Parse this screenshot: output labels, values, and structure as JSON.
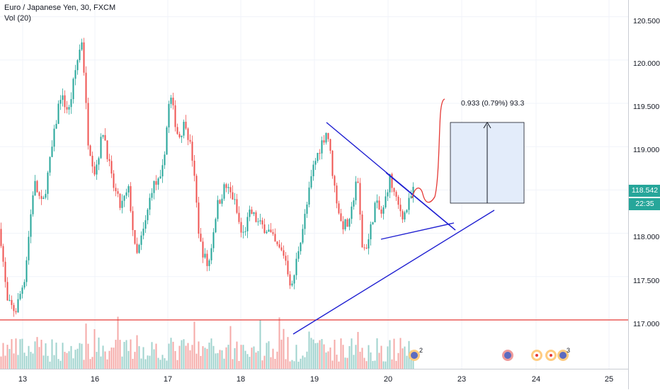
{
  "legend": {
    "symbol": "Euro / Japanese Yen, 30, FXCM",
    "indicator": "Vol (20)"
  },
  "price_axis": {
    "ticks": [
      "120.500",
      "120.000",
      "119.500",
      "119.000",
      "118.500",
      "118.000",
      "117.500",
      "117.000"
    ],
    "current_price": "118.542",
    "countdown": "22:35"
  },
  "time_axis": {
    "ticks": [
      "13",
      "16",
      "17",
      "18",
      "19",
      "20",
      "23",
      "24",
      "25"
    ]
  },
  "measure": {
    "label": "0.933 (0.79%) 93.3"
  },
  "events": [
    {
      "icon": "economic-event-icon",
      "count": "2"
    },
    {
      "icon": "economic-event-icon",
      "count": ""
    },
    {
      "icon": "earnings-event-icon",
      "count": ""
    },
    {
      "icon": "earnings-event-icon",
      "count": ""
    },
    {
      "icon": "economic-event-icon",
      "count": "3"
    }
  ],
  "colors": {
    "up": "#26a69a",
    "down": "#ef5350",
    "trendline": "#1f1fd1",
    "support": "#e53935",
    "measure_fill": "#e3ecfa",
    "vol_up": "#9fd3ce",
    "vol_down": "#f5a9a7"
  },
  "chart_data": {
    "type": "candlestick",
    "x_ticks": [
      "13",
      "16",
      "17",
      "18",
      "19",
      "20",
      "23",
      "24",
      "25"
    ],
    "y_ticks": [
      "120.500",
      "120.000",
      "119.500",
      "119.000",
      "118.500",
      "118.000",
      "117.500",
      "117.000"
    ],
    "y_range": [
      116.5,
      120.6
    ],
    "last_close": 118.542,
    "support_level": 117.06,
    "path": [
      [
        0,
        118.05
      ],
      [
        10,
        117.2
      ],
      [
        22,
        117.1
      ],
      [
        35,
        117.5
      ],
      [
        48,
        118.6
      ],
      [
        60,
        118.3
      ],
      [
        72,
        118.9
      ],
      [
        85,
        119.6
      ],
      [
        97,
        119.4
      ],
      [
        108,
        119.95
      ],
      [
        116,
        120.25
      ],
      [
        124,
        119.1
      ],
      [
        134,
        118.7
      ],
      [
        146,
        119.2
      ],
      [
        158,
        118.6
      ],
      [
        170,
        118.3
      ],
      [
        182,
        118.5
      ],
      [
        192,
        117.7
      ],
      [
        205,
        118.1
      ],
      [
        215,
        118.55
      ],
      [
        228,
        118.6
      ],
      [
        240,
        119.6
      ],
      [
        252,
        119.1
      ],
      [
        262,
        119.3
      ],
      [
        272,
        118.85
      ],
      [
        282,
        117.9
      ],
      [
        294,
        117.6
      ],
      [
        306,
        118.3
      ],
      [
        318,
        118.55
      ],
      [
        330,
        118.4
      ],
      [
        342,
        117.95
      ],
      [
        354,
        118.25
      ],
      [
        366,
        118.1
      ],
      [
        378,
        118.05
      ],
      [
        390,
        117.85
      ],
      [
        402,
        117.75
      ],
      [
        412,
        117.35
      ],
      [
        422,
        117.85
      ],
      [
        432,
        118.25
      ],
      [
        442,
        118.75
      ],
      [
        452,
        119.0
      ],
      [
        462,
        119.2
      ],
      [
        472,
        118.55
      ],
      [
        482,
        118.1
      ],
      [
        494,
        118.1
      ],
      [
        504,
        118.7
      ],
      [
        512,
        117.8
      ],
      [
        520,
        117.9
      ],
      [
        530,
        118.35
      ],
      [
        540,
        118.2
      ],
      [
        550,
        118.65
      ],
      [
        560,
        118.35
      ],
      [
        570,
        118.2
      ],
      [
        580,
        118.4
      ],
      [
        585,
        118.54
      ]
    ]
  }
}
